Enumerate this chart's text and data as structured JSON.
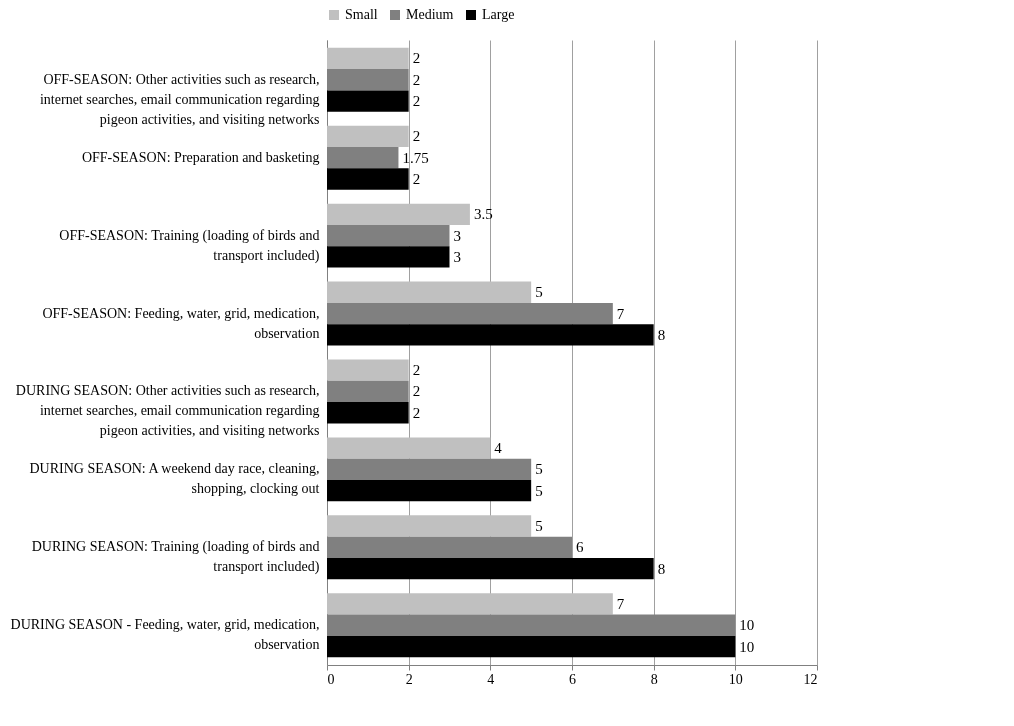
{
  "chart_data": {
    "type": "bar",
    "orientation": "horizontal",
    "categories": [
      "OFF-SEASON: Other activities such as research, internet searches, email communication regarding pigeon activities, and visiting networks",
      "OFF-SEASON: Preparation and basketing",
      "OFF-SEASON: Training (loading of birds and transport included)",
      "OFF-SEASON: Feeding, water, grid, medication, observation",
      "DURING SEASON: Other activities such as research, internet searches, email communication regarding pigeon activities, and visiting networks",
      "DURING SEASON: A weekend day race, cleaning, shopping, clocking out",
      "DURING SEASON: Training (loading of birds and transport included)",
      "DURING SEASON - Feeding, water, grid, medication, observation"
    ],
    "series": [
      {
        "name": "Small",
        "color": "#c0c0c0",
        "values": [
          2,
          2,
          3.5,
          5,
          2,
          4,
          5,
          7
        ]
      },
      {
        "name": "Medium",
        "color": "#808080",
        "values": [
          2,
          1.75,
          3,
          7,
          2,
          5,
          6,
          10
        ]
      },
      {
        "name": "Large",
        "color": "#000000",
        "values": [
          2,
          2,
          3,
          8,
          2,
          5,
          8,
          10
        ]
      }
    ],
    "xlim": [
      0,
      12
    ],
    "xticks": [
      0,
      2,
      4,
      6,
      8,
      10,
      12
    ],
    "grid": "x",
    "legend": "top",
    "data_labels": true
  }
}
